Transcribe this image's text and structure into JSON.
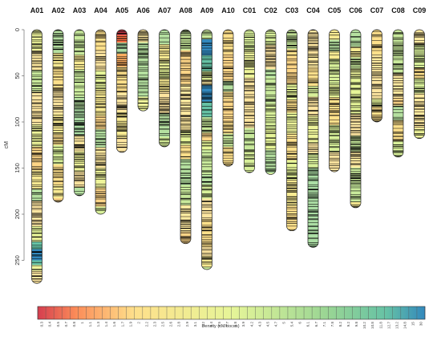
{
  "chart_data": {
    "type": "linkage-map",
    "ylabel": "cM",
    "y_reversed": true,
    "ylim": [
      0,
      280
    ],
    "y_ticks": [
      0,
      50,
      100,
      150,
      200,
      250
    ],
    "chromosomes": [
      {
        "name": "A01",
        "length": 275
      },
      {
        "name": "A02",
        "length": 187
      },
      {
        "name": "A03",
        "length": 180
      },
      {
        "name": "A04",
        "length": 200
      },
      {
        "name": "A05",
        "length": 133
      },
      {
        "name": "A06",
        "length": 88
      },
      {
        "name": "A07",
        "length": 127
      },
      {
        "name": "A08",
        "length": 232
      },
      {
        "name": "A09",
        "length": 260
      },
      {
        "name": "A10",
        "length": 148
      },
      {
        "name": "C01",
        "length": 155
      },
      {
        "name": "C02",
        "length": 157
      },
      {
        "name": "C03",
        "length": 218
      },
      {
        "name": "C04",
        "length": 236
      },
      {
        "name": "C05",
        "length": 154
      },
      {
        "name": "C06",
        "length": 193
      },
      {
        "name": "C07",
        "length": 100
      },
      {
        "name": "C08",
        "length": 138
      },
      {
        "name": "C09",
        "length": 118
      }
    ],
    "legend": {
      "title": "Density (cM/Locus)",
      "labels": [
        "0.3",
        "0.4",
        "0.5",
        "0.7",
        "0.8",
        "1",
        "1.1",
        "1.3",
        "1.4",
        "1.6",
        "1.7",
        "1.9",
        "2",
        "2.2",
        "2.3",
        "2.5",
        "2.6",
        "2.8",
        "2.9",
        "3.1",
        "3.2",
        "3.4",
        "3.5",
        "3.7",
        "3.8",
        "3.9",
        "4.2",
        "4.3",
        "4.5",
        "4.7",
        "5",
        "5.4",
        "6",
        "6.1",
        "6.7",
        "7.1",
        "7.8",
        "8.2",
        "9.2",
        "9.8",
        "10.2",
        "10.8",
        "11.8",
        "12.7",
        "13.2",
        "14.8",
        "15",
        "30"
      ]
    },
    "colors": {
      "sparse": "#d53e4f",
      "mid_warm": "#fee08b",
      "mid_cool": "#e6f598",
      "dense_green": "#66c2a5",
      "dense_blue": "#3288bd",
      "marker": "#000000"
    }
  }
}
